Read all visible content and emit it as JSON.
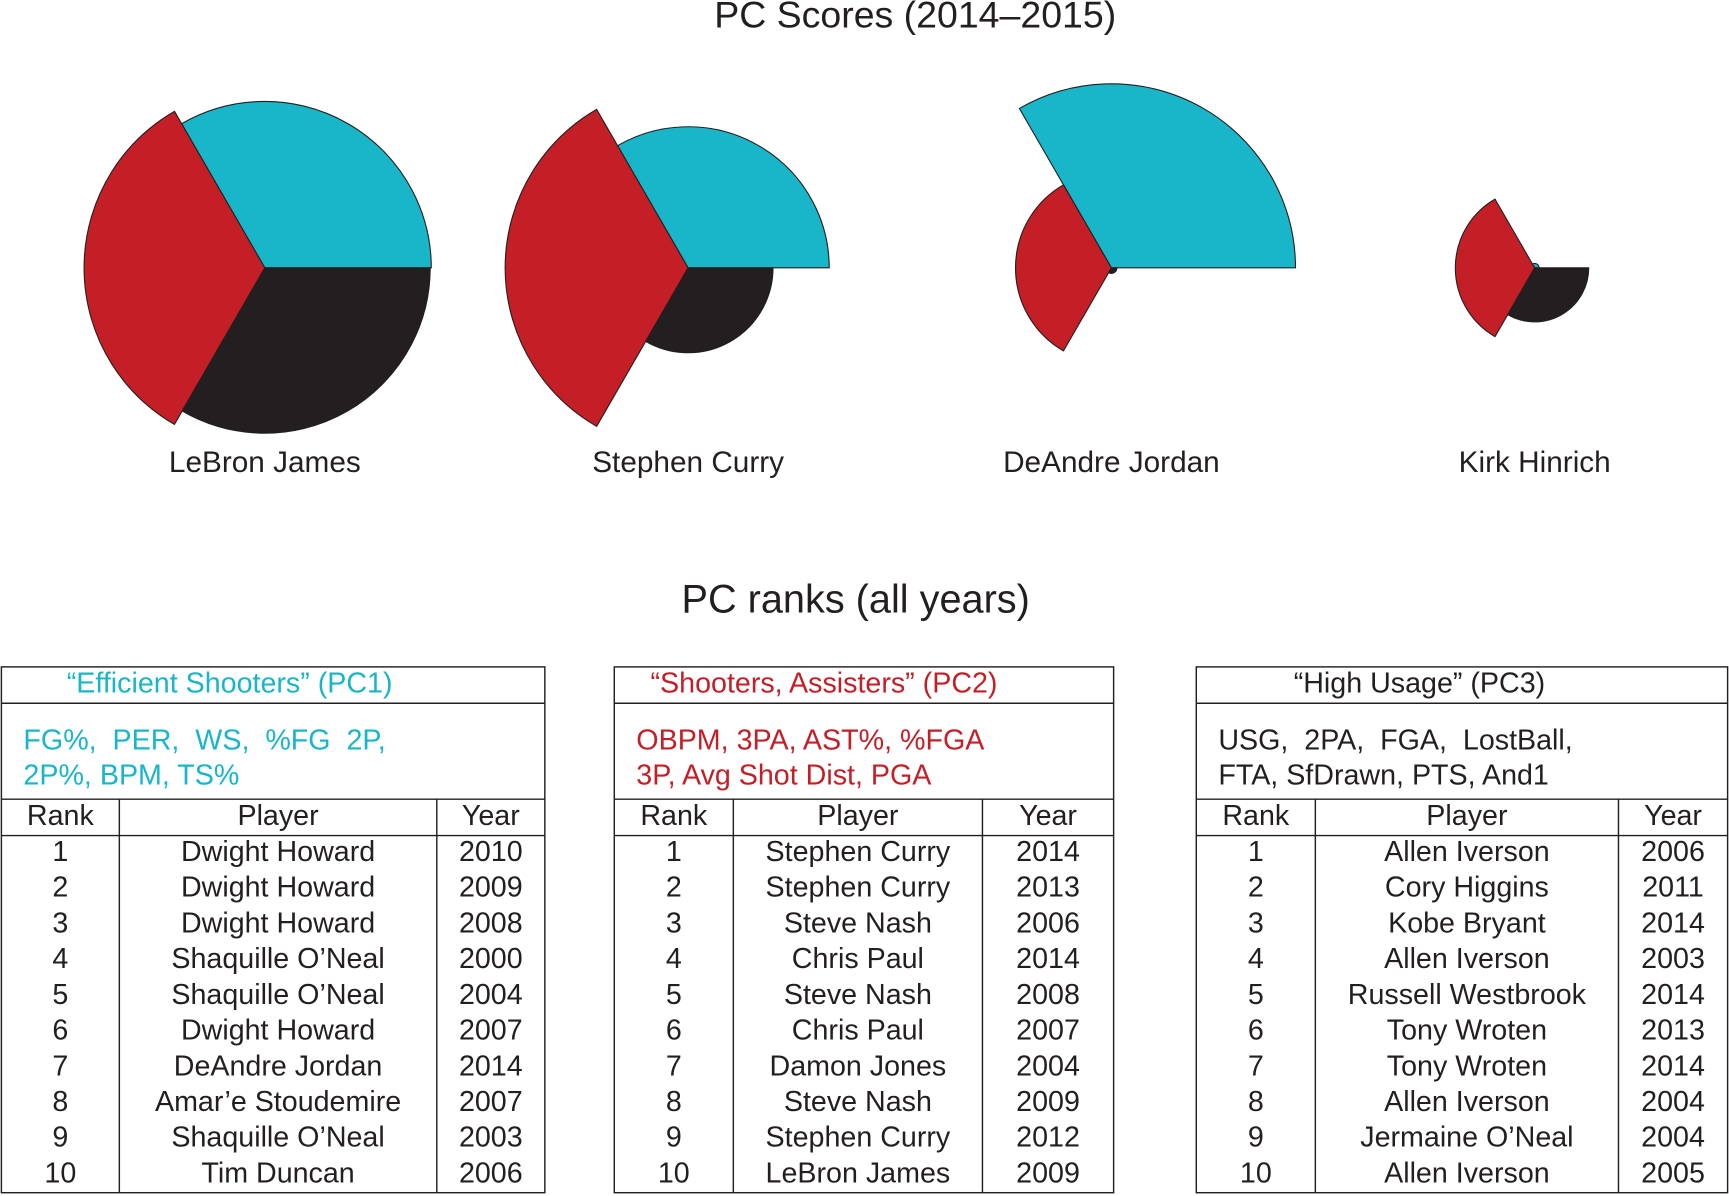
{
  "chart_data": {
    "type": "polar-area",
    "title": "PC Scores (2014–2015)",
    "categories": [
      "LeBron James",
      "Stephen Curry",
      "DeAndre Jordan",
      "Kirk Hinrich"
    ],
    "series": [
      {
        "color": "#19b5c8",
        "values": [
          151,
          128,
          167,
          4
        ]
      },
      {
        "color": "#c41e26",
        "values": [
          164,
          166,
          87,
          72
        ]
      },
      {
        "color": "#231f20",
        "values": [
          150,
          77,
          5,
          49
        ]
      }
    ]
  },
  "ranks_title": "PC ranks (all years)",
  "tables": [
    {
      "title": "“Efficient Shooters” (PC1)",
      "color": "#19b5c8",
      "description": [
        "FG%,  PER,  WS,  %FG  2P,",
        "2P%, BPM, TS%"
      ],
      "columns": [
        "Rank",
        "Player",
        "Year"
      ],
      "rows": [
        [
          1,
          "Dwight Howard",
          2010
        ],
        [
          2,
          "Dwight Howard",
          2009
        ],
        [
          3,
          "Dwight Howard",
          2008
        ],
        [
          4,
          "Shaquille O’Neal",
          2000
        ],
        [
          5,
          "Shaquille O’Neal",
          2004
        ],
        [
          6,
          "Dwight Howard",
          2007
        ],
        [
          7,
          "DeAndre Jordan",
          2014
        ],
        [
          8,
          "Amar’e Stoudemire",
          2007
        ],
        [
          9,
          "Shaquille O’Neal",
          2003
        ],
        [
          10,
          "Tim Duncan",
          2006
        ]
      ]
    },
    {
      "title": "“Shooters, Assisters” (PC2)",
      "color": "#c41e26",
      "description": [
        "OBPM, 3PA, AST%, %FGA",
        "3P, Avg Shot Dist, PGA"
      ],
      "columns": [
        "Rank",
        "Player",
        "Year"
      ],
      "rows": [
        [
          1,
          "Stephen Curry",
          2014
        ],
        [
          2,
          "Stephen Curry",
          2013
        ],
        [
          3,
          "Steve Nash",
          2006
        ],
        [
          4,
          "Chris Paul",
          2014
        ],
        [
          5,
          "Steve Nash",
          2008
        ],
        [
          6,
          "Chris Paul",
          2007
        ],
        [
          7,
          "Damon Jones",
          2004
        ],
        [
          8,
          "Steve Nash",
          2009
        ],
        [
          9,
          "Stephen Curry",
          2012
        ],
        [
          10,
          "LeBron James",
          2009
        ]
      ]
    },
    {
      "title": "“High Usage” (PC3)",
      "color": "#231f20",
      "description": [
        "USG,  2PA,  FGA,  LostBall,",
        "FTA, SfDrawn, PTS, And1"
      ],
      "columns": [
        "Rank",
        "Player",
        "Year"
      ],
      "rows": [
        [
          1,
          "Allen Iverson",
          2006
        ],
        [
          2,
          "Cory Higgins",
          2011
        ],
        [
          3,
          "Kobe Bryant",
          2014
        ],
        [
          4,
          "Allen Iverson",
          2003
        ],
        [
          5,
          "Russell Westbrook",
          2014
        ],
        [
          6,
          "Tony Wroten",
          2013
        ],
        [
          7,
          "Tony Wroten",
          2014
        ],
        [
          8,
          "Allen Iverson",
          2004
        ],
        [
          9,
          "Jermaine O’Neal",
          2004
        ],
        [
          10,
          "Allen Iverson",
          2005
        ]
      ]
    }
  ]
}
